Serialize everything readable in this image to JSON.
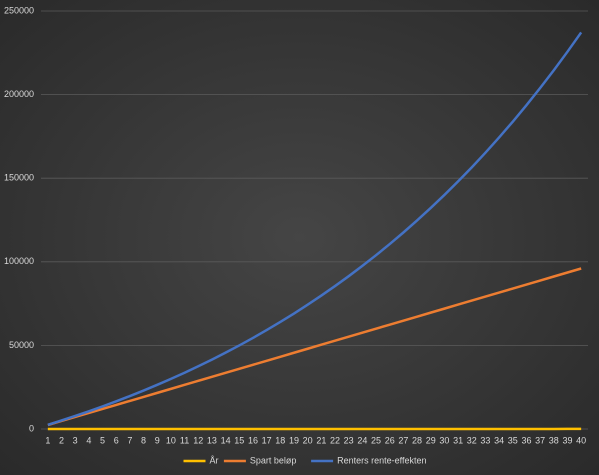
{
  "chart_data": {
    "type": "line",
    "categories": [
      "1",
      "2",
      "3",
      "4",
      "5",
      "6",
      "7",
      "8",
      "9",
      "10",
      "11",
      "12",
      "13",
      "14",
      "15",
      "16",
      "17",
      "18",
      "19",
      "20",
      "21",
      "22",
      "23",
      "24",
      "25",
      "26",
      "27",
      "28",
      "29",
      "30",
      "31",
      "32",
      "33",
      "34",
      "35",
      "36",
      "37",
      "38",
      "39",
      "40"
    ],
    "series": [
      {
        "name": "År",
        "color": "#ffc000",
        "values": [
          1,
          2,
          3,
          4,
          5,
          6,
          7,
          8,
          9,
          10,
          11,
          12,
          13,
          14,
          15,
          16,
          17,
          18,
          19,
          20,
          21,
          22,
          23,
          24,
          25,
          26,
          27,
          28,
          29,
          30,
          31,
          32,
          33,
          34,
          35,
          36,
          37,
          38,
          39,
          40
        ]
      },
      {
        "name": "Spart beløp",
        "color": "#ed7d31",
        "values": [
          2400,
          4800,
          7200,
          9600,
          12000,
          14400,
          16800,
          19200,
          21600,
          24000,
          26400,
          28800,
          31200,
          33600,
          36000,
          38400,
          40800,
          43200,
          45600,
          48000,
          50400,
          52800,
          55200,
          57600,
          60000,
          62400,
          64800,
          67200,
          69600,
          72000,
          74400,
          76800,
          79200,
          81600,
          84000,
          86400,
          88800,
          91200,
          93600,
          96000
        ]
      },
      {
        "name": "Renters rente-effekten",
        "color": "#4472c4",
        "values": [
          2496,
          5092,
          7792,
          10599,
          13519,
          16556,
          19714,
          22999,
          26415,
          29967,
          33662,
          37504,
          41501,
          45657,
          49979,
          54474,
          59149,
          64011,
          69067,
          74326,
          79795,
          85483,
          91398,
          97550,
          103948,
          110602,
          117522,
          124719,
          132204,
          139988,
          148084,
          156503,
          165259,
          174365,
          183836,
          193685,
          203929,
          214582,
          225661,
          237184
        ]
      }
    ],
    "ylim": [
      0,
      250000
    ],
    "yticks": [
      0,
      50000,
      100000,
      150000,
      200000,
      250000
    ],
    "grid": true,
    "legend": "bottom"
  }
}
